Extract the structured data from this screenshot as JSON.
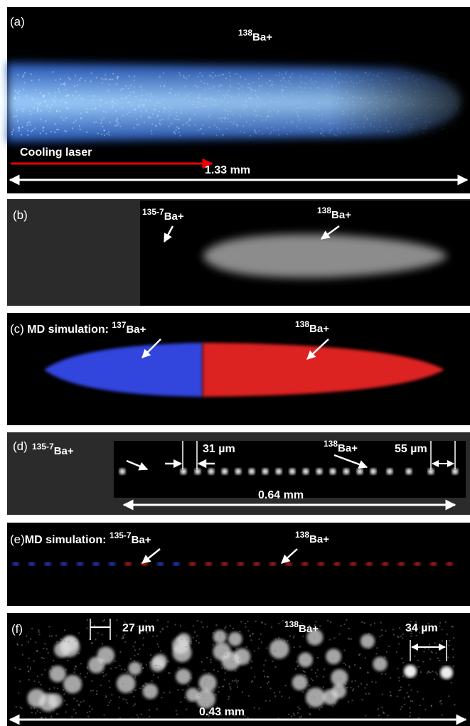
{
  "panels": [
    {
      "label": "(a)",
      "species": [
        {
          "mass": "138",
          "ion": "Ba+"
        }
      ],
      "beam": "Cooling laser",
      "scale": "1.33 mm"
    },
    {
      "label": "(b)",
      "species": [
        {
          "mass": "135-7",
          "ion": "Ba+"
        },
        {
          "mass": "138",
          "ion": "Ba+"
        }
      ]
    },
    {
      "label": "(c)",
      "title": "MD simulation:",
      "species": [
        {
          "mass": "137",
          "ion": "Ba+"
        },
        {
          "mass": "138",
          "ion": "Ba+"
        }
      ]
    },
    {
      "label": "(d)",
      "species": [
        {
          "mass": "135-7",
          "ion": "Ba+"
        },
        {
          "mass": "138",
          "ion": "Ba+"
        }
      ],
      "spacings": [
        "31 µm",
        "55 µm"
      ],
      "scale": "0.64 mm"
    },
    {
      "label": "(e)",
      "title": "MD simulation:",
      "species": [
        {
          "mass": "135-7",
          "ion": "Ba+"
        },
        {
          "mass": "138",
          "ion": "Ba+"
        }
      ]
    },
    {
      "label": "(f)",
      "species": [
        {
          "mass": "138",
          "ion": "Ba+"
        }
      ],
      "spacings": [
        "27 µm",
        "34 µm"
      ],
      "scale": "0.43 mm"
    }
  ]
}
